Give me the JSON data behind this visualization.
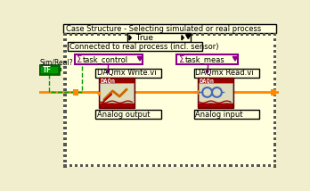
{
  "outer_bg": "#f0eecc",
  "light_yellow": "#ffffdd",
  "title_text": "Case Structure - Selecting simulated or real process",
  "true_label": " True",
  "sensor_label": "Connected to real process (incl. sensor)",
  "task_control_label": "task_control",
  "task_meas_label": "task_meas",
  "daq_write_label": "DAQmx Write.vi",
  "daq_read_label": "DAQmx Read.vi",
  "analog_output_label": "Analog output",
  "analog_input_label": "Analog input",
  "sim_real_label": "Sim/Real?",
  "tf_label": "TF",
  "orange": "#ff8800",
  "green": "#009900",
  "green_dark": "#006600",
  "purple": "#880088",
  "dark_red": "#aa0000",
  "white": "#ffffff",
  "black": "#000000",
  "hatch_color": "#555555",
  "blue_icon": "#4466bb"
}
